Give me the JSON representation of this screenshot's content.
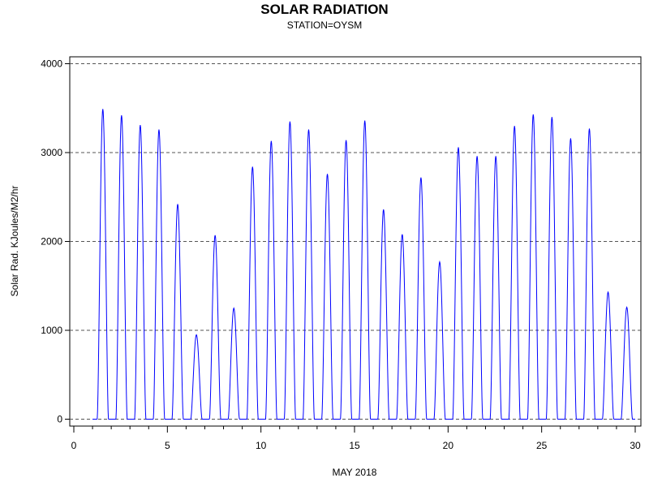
{
  "chart_data": {
    "type": "line",
    "title": "SOLAR RADIATION",
    "subtitle": "STATION=OYSM",
    "xlabel": "MAY 2018",
    "ylabel": "Solar Rad. KJoules/M2/hr",
    "xlim": [
      0,
      30
    ],
    "ylim": [
      0,
      4000
    ],
    "x_ticks": [
      "0",
      "5",
      "10",
      "15",
      "20",
      "25",
      "30"
    ],
    "x_tick_values": [
      0,
      5,
      10,
      15,
      20,
      25,
      30
    ],
    "x_minor_step": 1,
    "y_ticks": [
      "0",
      "1000",
      "2000",
      "3000",
      "4000"
    ],
    "y_tick_values": [
      0,
      1000,
      2000,
      3000,
      4000
    ],
    "grid": "horizontal dashed at y ticks",
    "line_color": "#0000ff",
    "series": [
      {
        "name": "Solar Radiation",
        "daily_peaks": [
          {
            "day": 1,
            "peak": 3490
          },
          {
            "day": 2,
            "peak": 3420
          },
          {
            "day": 3,
            "peak": 3310
          },
          {
            "day": 4,
            "peak": 3260
          },
          {
            "day": 5,
            "peak": 2420
          },
          {
            "day": 6,
            "peak": 950
          },
          {
            "day": 7,
            "peak": 2070
          },
          {
            "day": 8,
            "peak": 1250
          },
          {
            "day": 9,
            "peak": 2840
          },
          {
            "day": 10,
            "peak": 3130
          },
          {
            "day": 11,
            "peak": 3350
          },
          {
            "day": 12,
            "peak": 3260
          },
          {
            "day": 13,
            "peak": 2760
          },
          {
            "day": 14,
            "peak": 3140
          },
          {
            "day": 15,
            "peak": 3360
          },
          {
            "day": 16,
            "peak": 2360
          },
          {
            "day": 17,
            "peak": 2080
          },
          {
            "day": 18,
            "peak": 2720
          },
          {
            "day": 19,
            "peak": 1770
          },
          {
            "day": 20,
            "peak": 3060
          },
          {
            "day": 21,
            "peak": 2960
          },
          {
            "day": 22,
            "peak": 2960
          },
          {
            "day": 23,
            "peak": 3300
          },
          {
            "day": 24,
            "peak": 3430
          },
          {
            "day": 25,
            "peak": 3400
          },
          {
            "day": 26,
            "peak": 3160
          },
          {
            "day": 27,
            "peak": 3270
          },
          {
            "day": 28,
            "peak": 1430
          },
          {
            "day": 29,
            "peak": 1260
          }
        ]
      }
    ]
  }
}
